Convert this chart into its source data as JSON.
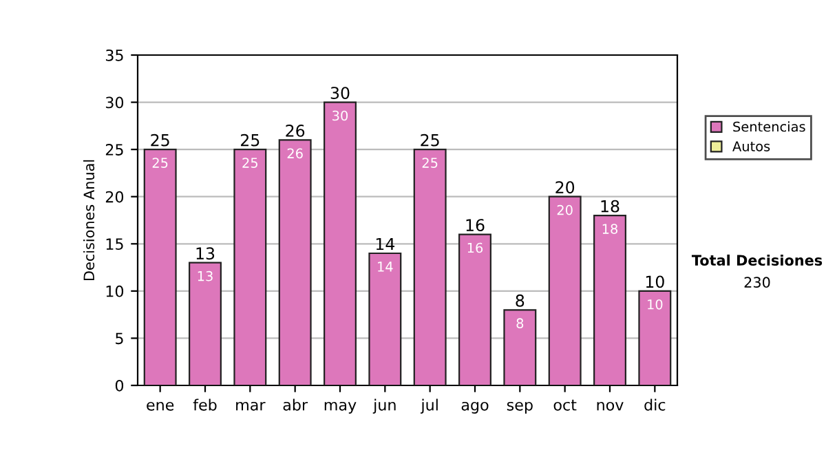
{
  "chart_data": {
    "type": "bar",
    "stacked": true,
    "ylabel": "Decisiones Anual",
    "categories": [
      "ene",
      "feb",
      "mar",
      "abr",
      "may",
      "jun",
      "jul",
      "ago",
      "sep",
      "oct",
      "nov",
      "dic"
    ],
    "series": [
      {
        "name": "Sentencias",
        "color": "#dd77bb",
        "values": [
          25,
          13,
          25,
          26,
          30,
          14,
          25,
          16,
          8,
          20,
          18,
          10
        ],
        "value_labels": [
          "25",
          "13",
          "25",
          "26",
          "30",
          "14",
          "25",
          "16",
          "8",
          "20",
          "18",
          "10"
        ]
      },
      {
        "name": "Autos",
        "color": "#eeee99",
        "values": [
          null,
          null,
          null,
          null,
          null,
          null,
          null,
          null,
          null,
          null,
          null,
          null
        ]
      }
    ],
    "totals": [
      "25",
      "13",
      "25",
      "26",
      "30",
      "14",
      "25",
      "16",
      "8",
      "20",
      "18",
      "10"
    ],
    "ylim": [
      0,
      35
    ],
    "yticks": [
      0,
      5,
      10,
      15,
      20,
      25,
      30,
      35
    ],
    "grid": "y",
    "legend": "right",
    "annotations": [
      "Total Decisiones",
      "230"
    ]
  }
}
